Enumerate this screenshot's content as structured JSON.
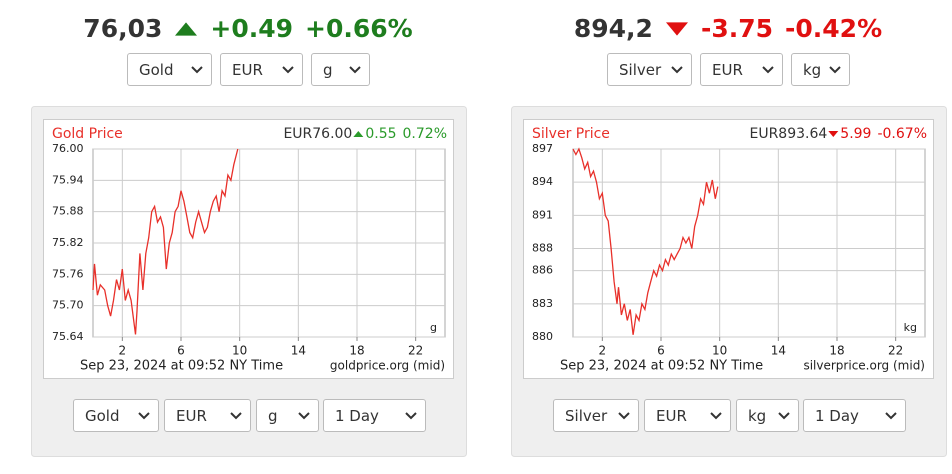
{
  "widgets": [
    {
      "price": "76,03",
      "direction": "up",
      "change": "+0.49",
      "percent": "+0.66%",
      "color": "#1e7d1e",
      "selects": [
        "Gold",
        "EUR",
        "g"
      ],
      "bottom_selects": [
        "Gold",
        "EUR",
        "g",
        "1 Day"
      ]
    },
    {
      "price": "894,2",
      "direction": "down",
      "change": "-3.75",
      "percent": "-0.42%",
      "color": "#e01010",
      "selects": [
        "Silver",
        "EUR",
        "kg"
      ],
      "bottom_selects": [
        "Silver",
        "EUR",
        "kg",
        "1 Day"
      ]
    }
  ],
  "chart_data": [
    {
      "type": "line",
      "title": "Gold Price",
      "quote": "EUR76.00",
      "direction": "up",
      "change": "0.55",
      "percent": "0.72%",
      "change_color": "#2a9a2a",
      "caption": "Sep 23, 2024 at 09:52 NY Time",
      "source": "goldprice.org (mid)",
      "unit": "g",
      "grid": true,
      "xlim": [
        0,
        24
      ],
      "xticks": [
        2,
        6,
        10,
        14,
        18,
        22
      ],
      "ylim": [
        75.64,
        76
      ],
      "yticks": [
        75.64,
        {
          "value": 75.7,
          "label": "75.70"
        },
        75.76,
        75.82,
        75.88,
        75.94,
        {
          "value": 76,
          "label": "76.00"
        }
      ],
      "x": [
        0,
        0.1,
        0.3,
        0.5,
        0.8,
        1.0,
        1.2,
        1.4,
        1.6,
        1.8,
        2.0,
        2.2,
        2.4,
        2.6,
        2.9,
        3.0,
        3.2,
        3.4,
        3.6,
        3.8,
        4.0,
        4.2,
        4.4,
        4.6,
        4.8,
        5.0,
        5.2,
        5.4,
        5.6,
        5.8,
        6.0,
        6.2,
        6.4,
        6.6,
        6.8,
        7.0,
        7.2,
        7.4,
        7.6,
        7.8,
        8.0,
        8.2,
        8.4,
        8.6,
        8.8,
        9.0,
        9.2,
        9.4,
        9.6,
        9.87
      ],
      "series": [
        {
          "color": "#e8302a",
          "values": [
            75.73,
            75.78,
            75.72,
            75.74,
            75.73,
            75.7,
            75.68,
            75.71,
            75.75,
            75.73,
            75.77,
            75.71,
            75.73,
            75.71,
            75.645,
            75.69,
            75.8,
            75.73,
            75.8,
            75.83,
            75.88,
            75.89,
            75.86,
            75.87,
            75.85,
            75.77,
            75.82,
            75.84,
            75.88,
            75.89,
            75.92,
            75.9,
            75.87,
            75.84,
            75.83,
            75.86,
            75.88,
            75.86,
            75.84,
            75.85,
            75.88,
            75.9,
            75.91,
            75.88,
            75.92,
            75.91,
            75.95,
            75.94,
            75.97,
            76.0
          ]
        }
      ]
    },
    {
      "type": "line",
      "title": "Silver Price",
      "quote": "EUR893.64",
      "direction": "down",
      "change": "5.99",
      "percent": "-0.67%",
      "change_color": "#e01010",
      "caption": "Sep 23, 2024 at 09:52 NY Time",
      "source": "silverprice.org (mid)",
      "unit": "kg",
      "grid": true,
      "xlim": [
        0,
        24
      ],
      "xticks": [
        2,
        6,
        10,
        14,
        18,
        22
      ],
      "ylim": [
        880,
        897
      ],
      "yticks": [
        880,
        883,
        886,
        888,
        891,
        894,
        897
      ],
      "x": [
        0,
        0.2,
        0.4,
        0.6,
        0.8,
        1.0,
        1.2,
        1.4,
        1.6,
        1.8,
        2.0,
        2.2,
        2.4,
        2.6,
        2.8,
        3.0,
        3.1,
        3.3,
        3.5,
        3.7,
        3.9,
        4.1,
        4.3,
        4.5,
        4.7,
        4.9,
        5.1,
        5.3,
        5.5,
        5.7,
        5.9,
        6.1,
        6.3,
        6.5,
        6.7,
        6.9,
        7.1,
        7.3,
        7.5,
        7.7,
        7.9,
        8.1,
        8.3,
        8.5,
        8.7,
        8.9,
        9.1,
        9.3,
        9.5,
        9.7,
        9.87
      ],
      "series": [
        {
          "color": "#e8302a",
          "values": [
            897,
            896.5,
            897,
            896.2,
            895.2,
            895.8,
            894.5,
            895,
            894,
            892.5,
            893,
            891,
            890.5,
            888,
            885,
            883,
            884.5,
            882,
            883,
            881.5,
            882.5,
            880.2,
            882,
            881.5,
            883,
            882.5,
            884,
            885,
            886,
            885.5,
            886.5,
            886,
            887,
            886.5,
            887.5,
            887,
            887.5,
            888,
            889,
            888.5,
            889,
            888,
            890,
            891,
            892.5,
            892,
            894,
            893,
            894.2,
            892.5,
            893.6
          ]
        }
      ]
    }
  ]
}
